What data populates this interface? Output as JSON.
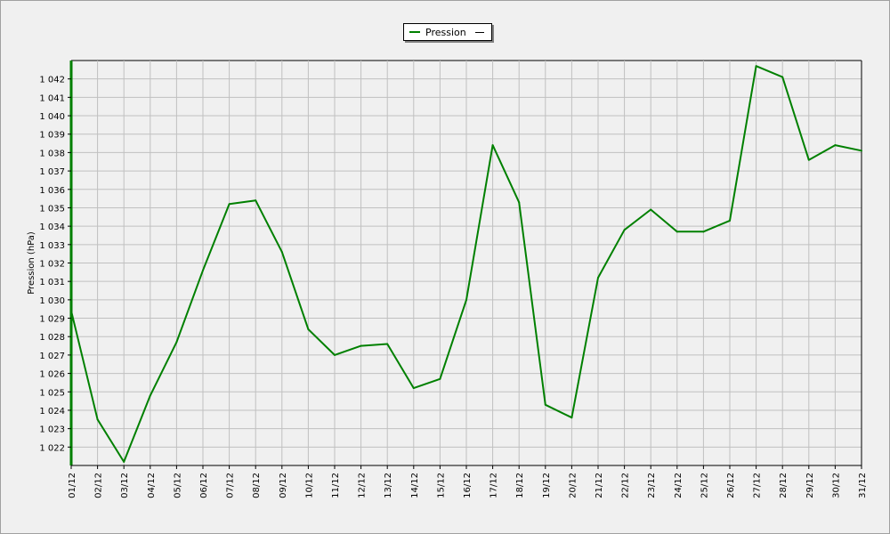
{
  "chart_data": {
    "type": "line",
    "title": "",
    "xlabel": "",
    "ylabel": "Pression (hPa)",
    "legend": {
      "entries": [
        "Pression"
      ],
      "placement": "top-center"
    },
    "grid": true,
    "ylim": [
      1021,
      1043
    ],
    "yticks": [
      1022,
      1023,
      1024,
      1025,
      1026,
      1027,
      1028,
      1029,
      1030,
      1031,
      1032,
      1033,
      1034,
      1035,
      1036,
      1037,
      1038,
      1039,
      1040,
      1041,
      1042
    ],
    "ytick_labels": [
      "1 022",
      "1 023",
      "1 024",
      "1 025",
      "1 026",
      "1 027",
      "1 028",
      "1 029",
      "1 030",
      "1 031",
      "1 032",
      "1 033",
      "1 034",
      "1 035",
      "1 036",
      "1 037",
      "1 038",
      "1 039",
      "1 040",
      "1 041",
      "1 042"
    ],
    "categories": [
      "01/12",
      "02/12",
      "03/12",
      "04/12",
      "05/12",
      "06/12",
      "07/12",
      "08/12",
      "09/12",
      "10/12",
      "11/12",
      "12/12",
      "13/12",
      "14/12",
      "15/12",
      "16/12",
      "17/12",
      "18/12",
      "19/12",
      "20/12",
      "21/12",
      "22/12",
      "23/12",
      "24/12",
      "25/12",
      "26/12",
      "27/12",
      "28/12",
      "29/12",
      "30/12",
      "31/12"
    ],
    "series": [
      {
        "name": "Pression",
        "color": "#008000",
        "values": [
          1029.4,
          1023.5,
          1021.2,
          1024.8,
          1027.7,
          1031.6,
          1035.2,
          1035.4,
          1032.6,
          1028.4,
          1027.0,
          1027.5,
          1027.6,
          1025.2,
          1025.7,
          1030.0,
          1038.4,
          1035.3,
          1024.3,
          1023.6,
          1031.2,
          1033.8,
          1034.9,
          1033.7,
          1033.7,
          1034.3,
          1042.7,
          1042.1,
          1037.6,
          1038.4,
          1038.1
        ]
      }
    ]
  },
  "colors": {
    "background": "#f0f0f0",
    "plot_background": "#f0f0f0",
    "grid": "#c0c0c0",
    "axis": "#008000"
  }
}
